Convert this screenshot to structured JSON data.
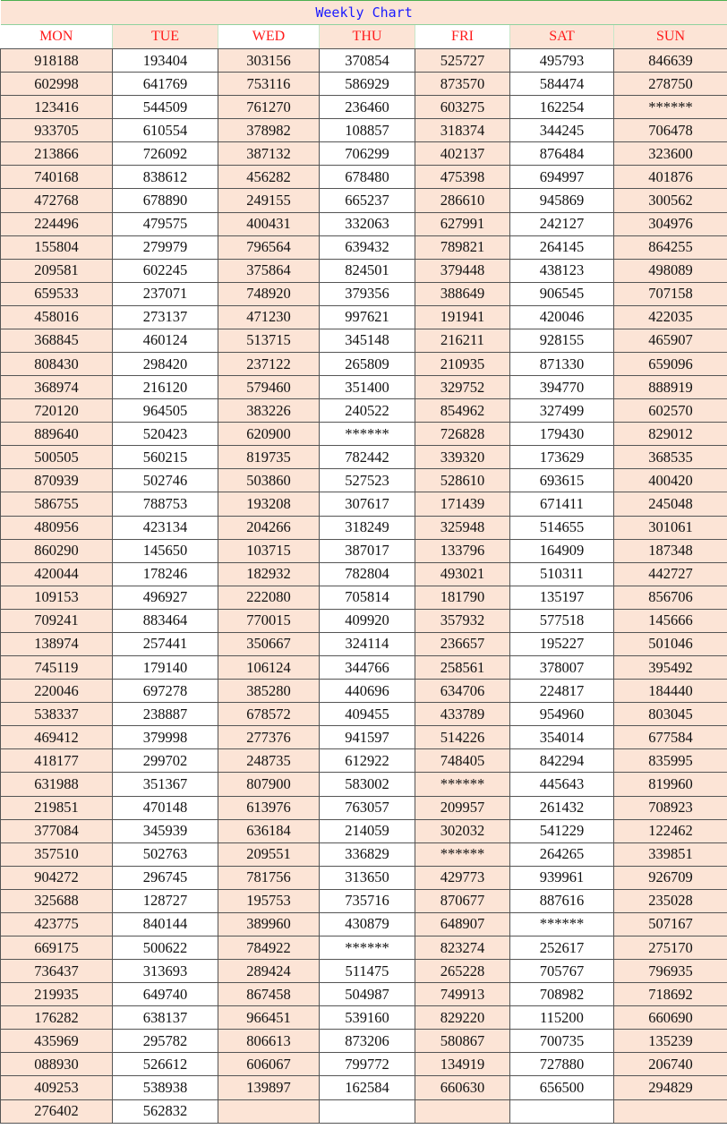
{
  "title": "Weekly Chart",
  "days": [
    "MON",
    "TUE",
    "WED",
    "THU",
    "FRI",
    "SAT",
    "SUN"
  ],
  "colors": {
    "peach": "#fce4d6",
    "header_text": "#ff1a1a",
    "title_text": "#1a1aff",
    "highlight": "#ff1a1a"
  },
  "highlighted_cells": [
    [
      31,
      4
    ],
    [
      34,
      4
    ]
  ],
  "rows": [
    [
      "918188",
      "193404",
      "303156",
      "370854",
      "525727",
      "495793",
      "846639"
    ],
    [
      "602998",
      "641769",
      "753116",
      "586929",
      "873570",
      "584474",
      "278750"
    ],
    [
      "123416",
      "544509",
      "761270",
      "236460",
      "603275",
      "162254",
      "******"
    ],
    [
      "933705",
      "610554",
      "378982",
      "108857",
      "318374",
      "344245",
      "706478"
    ],
    [
      "213866",
      "726092",
      "387132",
      "706299",
      "402137",
      "876484",
      "323600"
    ],
    [
      "740168",
      "838612",
      "456282",
      "678480",
      "475398",
      "694997",
      "401876"
    ],
    [
      "472768",
      "678890",
      "249155",
      "665237",
      "286610",
      "945869",
      "300562"
    ],
    [
      "224496",
      "479575",
      "400431",
      "332063",
      "627991",
      "242127",
      "304976"
    ],
    [
      "155804",
      "279979",
      "796564",
      "639432",
      "789821",
      "264145",
      "864255"
    ],
    [
      "209581",
      "602245",
      "375864",
      "824501",
      "379448",
      "438123",
      "498089"
    ],
    [
      "659533",
      "237071",
      "748920",
      "379356",
      "388649",
      "906545",
      "707158"
    ],
    [
      "458016",
      "273137",
      "471230",
      "997621",
      "191941",
      "420046",
      "422035"
    ],
    [
      "368845",
      "460124",
      "513715",
      "345148",
      "216211",
      "928155",
      "465907"
    ],
    [
      "808430",
      "298420",
      "237122",
      "265809",
      "210935",
      "871330",
      "659096"
    ],
    [
      "368974",
      "216120",
      "579460",
      "351400",
      "329752",
      "394770",
      "888919"
    ],
    [
      "720120",
      "964505",
      "383226",
      "240522",
      "854962",
      "327499",
      "602570"
    ],
    [
      "889640",
      "520423",
      "620900",
      "******",
      "726828",
      "179430",
      "829012"
    ],
    [
      "500505",
      "560215",
      "819735",
      "782442",
      "339320",
      "173629",
      "368535"
    ],
    [
      "870939",
      "502746",
      "503860",
      "527523",
      "528610",
      "693615",
      "400420"
    ],
    [
      "586755",
      "788753",
      "193208",
      "307617",
      "171439",
      "671411",
      "245048"
    ],
    [
      "480956",
      "423134",
      "204266",
      "318249",
      "325948",
      "514655",
      "301061"
    ],
    [
      "860290",
      "145650",
      "103715",
      "387017",
      "133796",
      "164909",
      "187348"
    ],
    [
      "420044",
      "178246",
      "182932",
      "782804",
      "493021",
      "510311",
      "442727"
    ],
    [
      "109153",
      "496927",
      "222080",
      "705814",
      "181790",
      "135197",
      "856706"
    ],
    [
      "709241",
      "883464",
      "770015",
      "409920",
      "357932",
      "577518",
      "145666"
    ],
    [
      "138974",
      "257441",
      "350667",
      "324114",
      "236657",
      "195227",
      "501046"
    ],
    [
      "745119",
      "179140",
      "106124",
      "344766",
      "258561",
      "378007",
      "395492"
    ],
    [
      "220046",
      "697278",
      "385280",
      "440696",
      "634706",
      "224817",
      "184440"
    ],
    [
      "538337",
      "238887",
      "678572",
      "409455",
      "433789",
      "954960",
      "803045"
    ],
    [
      "469412",
      "379998",
      "277376",
      "941597",
      "514226",
      "354014",
      "677584"
    ],
    [
      "418177",
      "299702",
      "248735",
      "612922",
      "748405",
      "842294",
      "835995"
    ],
    [
      "631988",
      "351367",
      "807900",
      "583002",
      "******",
      "445643",
      "819960"
    ],
    [
      "219851",
      "470148",
      "613976",
      "763057",
      "209957",
      "261432",
      "708923"
    ],
    [
      "377084",
      "345939",
      "636184",
      "214059",
      "302032",
      "541229",
      "122462"
    ],
    [
      "357510",
      "502763",
      "209551",
      "336829",
      "******",
      "264265",
      "339851"
    ],
    [
      "904272",
      "296745",
      "781756",
      "313650",
      "429773",
      "939961",
      "926709"
    ],
    [
      "325688",
      "128727",
      "195753",
      "735716",
      "870677",
      "887616",
      "235028"
    ],
    [
      "423775",
      "840144",
      "389960",
      "430879",
      "648907",
      "******",
      "507167"
    ],
    [
      "669175",
      "500622",
      "784922",
      "******",
      "823274",
      "252617",
      "275170"
    ],
    [
      "736437",
      "313693",
      "289424",
      "511475",
      "265228",
      "705767",
      "796935"
    ],
    [
      "219935",
      "649740",
      "867458",
      "504987",
      "749913",
      "708982",
      "718692"
    ],
    [
      "176282",
      "638137",
      "966451",
      "539160",
      "829220",
      "115200",
      "660690"
    ],
    [
      "435969",
      "295782",
      "806613",
      "873206",
      "580867",
      "700735",
      "135239"
    ],
    [
      "088930",
      "526612",
      "606067",
      "799772",
      "134919",
      "727880",
      "206740"
    ],
    [
      "409253",
      "538938",
      "139897",
      "162584",
      "660630",
      "656500",
      "294829"
    ],
    [
      "276402",
      "562832",
      "",
      "",
      "",
      "",
      ""
    ]
  ]
}
